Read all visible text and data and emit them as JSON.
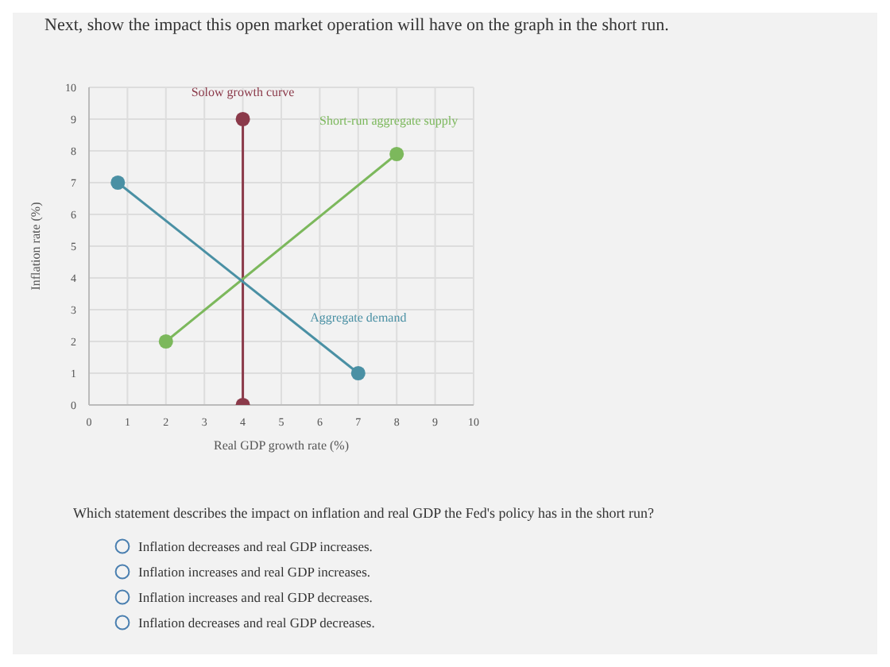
{
  "chart_data": {
    "type": "line",
    "title": "Next, show the impact this open market operation will have on the graph in the short run.",
    "xlabel": "Real GDP growth rate (%)",
    "ylabel": "Inflation rate (%)",
    "series": [
      {
        "name": "Solow growth curve",
        "color": "#8b3a4a",
        "x": [
          4,
          4
        ],
        "values": [
          0,
          9
        ]
      },
      {
        "name": "Short-run aggregate supply",
        "color": "#7cb85c",
        "x": [
          2,
          8
        ],
        "values": [
          2,
          7.9
        ]
      },
      {
        "name": "Aggregate demand",
        "color": "#4a90a4",
        "x": [
          0.75,
          7
        ],
        "values": [
          7,
          1
        ]
      }
    ],
    "xlim": [
      0,
      10
    ],
    "ylim": [
      0,
      10
    ],
    "xticks": [
      0,
      1,
      2,
      3,
      4,
      5,
      6,
      7,
      8,
      9,
      10
    ],
    "yticks": [
      0,
      1,
      2,
      3,
      4,
      5,
      6,
      7,
      8,
      9,
      10
    ],
    "grid": true,
    "marker": "circle",
    "line_style": "solid",
    "legend": false,
    "annotations": [
      "Which statement describes the impact on inflation and real GDP the Fed's policy has in the short run?",
      "Inflation decreases and real GDP increases.",
      "Inflation increases and real GDP increases.",
      "Inflation increases and real GDP decreases.",
      "Inflation decreases and real GDP decreases."
    ]
  }
}
